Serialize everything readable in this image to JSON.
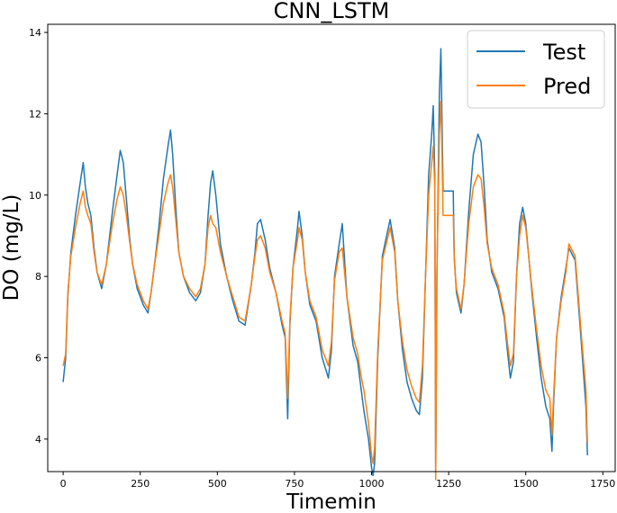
{
  "chart_data": {
    "type": "line",
    "title": "CNN_LSTM",
    "xlabel": "Timemin",
    "ylabel": "DO (mg/L)",
    "xlim": [
      -50,
      1790
    ],
    "ylim": [
      3.2,
      14.2
    ],
    "xticks": [
      0,
      250,
      500,
      750,
      1000,
      1250,
      1500,
      1750
    ],
    "yticks": [
      4,
      6,
      8,
      10,
      12,
      14
    ],
    "grid": false,
    "legend": "top-right",
    "series": [
      {
        "name": "Test",
        "color": "#1f77b4",
        "x": [
          0,
          8,
          15,
          25,
          40,
          55,
          65,
          72,
          80,
          90,
          100,
          110,
          125,
          140,
          160,
          175,
          185,
          195,
          205,
          215,
          225,
          240,
          260,
          275,
          285,
          295,
          310,
          325,
          340,
          348,
          355,
          365,
          375,
          390,
          410,
          430,
          445,
          460,
          470,
          478,
          485,
          495,
          510,
          530,
          550,
          570,
          590,
          610,
          622,
          630,
          640,
          655,
          670,
          690,
          710,
          720,
          728,
          735,
          745,
          760,
          765,
          775,
          785,
          800,
          820,
          840,
          860,
          870,
          880,
          895,
          905,
          920,
          940,
          955,
          965,
          975,
          990,
          1000,
          1005,
          1010,
          1020,
          1035,
          1060,
          1075,
          1085,
          1100,
          1115,
          1130,
          1145,
          1155,
          1165,
          1175,
          1185,
          1195,
          1200,
          1205,
          1208,
          1212,
          1220,
          1225,
          1228,
          1232,
          1240,
          1250,
          1265,
          1268,
          1275,
          1290,
          1300,
          1315,
          1330,
          1345,
          1355,
          1365,
          1375,
          1390,
          1410,
          1430,
          1440,
          1450,
          1460,
          1470,
          1480,
          1490,
          1500,
          1520,
          1535,
          1550,
          1565,
          1578,
          1585,
          1590,
          1600,
          1615,
          1630,
          1640,
          1660,
          1680,
          1695,
          1700
        ],
        "y": [
          5.4,
          6.0,
          7.5,
          8.6,
          9.5,
          10.3,
          10.8,
          10.2,
          9.8,
          9.5,
          8.7,
          8.1,
          7.7,
          8.3,
          9.6,
          10.5,
          11.1,
          10.8,
          9.9,
          9.0,
          8.3,
          7.7,
          7.3,
          7.1,
          7.6,
          8.2,
          9.2,
          10.4,
          11.2,
          11.6,
          11.0,
          9.7,
          8.6,
          8.0,
          7.6,
          7.4,
          7.6,
          8.3,
          9.5,
          10.3,
          10.6,
          10.0,
          8.8,
          8.0,
          7.4,
          6.9,
          6.8,
          7.8,
          8.6,
          9.3,
          9.4,
          8.9,
          8.2,
          7.6,
          6.8,
          6.5,
          4.5,
          6.8,
          8.2,
          9.2,
          9.6,
          9.0,
          8.1,
          7.3,
          6.9,
          6.0,
          5.5,
          6.2,
          8.0,
          8.8,
          9.3,
          7.5,
          6.3,
          5.9,
          5.3,
          4.7,
          4.0,
          3.3,
          3.1,
          3.4,
          6.0,
          8.5,
          9.4,
          8.7,
          7.4,
          6.2,
          5.4,
          5.0,
          4.7,
          4.6,
          5.5,
          8.0,
          10.5,
          11.5,
          12.2,
          10.5,
          3.1,
          8.0,
          12.5,
          13.6,
          12.0,
          10.1,
          10.1,
          10.1,
          10.1,
          8.5,
          7.6,
          7.1,
          7.8,
          9.6,
          11.0,
          11.5,
          11.3,
          10.2,
          8.9,
          8.1,
          7.7,
          7.0,
          6.2,
          5.5,
          5.9,
          8.0,
          9.3,
          9.7,
          9.3,
          7.6,
          6.5,
          5.5,
          4.8,
          4.5,
          3.7,
          4.8,
          6.5,
          7.5,
          8.2,
          8.7,
          8.4,
          6.4,
          4.8,
          3.6
        ]
      },
      {
        "name": "Pred",
        "color": "#ff7f0e",
        "x": [
          0,
          8,
          15,
          25,
          40,
          55,
          65,
          72,
          80,
          90,
          100,
          110,
          125,
          140,
          160,
          175,
          185,
          195,
          205,
          215,
          225,
          240,
          260,
          275,
          285,
          295,
          310,
          325,
          340,
          348,
          355,
          365,
          375,
          390,
          410,
          430,
          445,
          460,
          470,
          478,
          485,
          495,
          510,
          530,
          550,
          570,
          590,
          610,
          622,
          630,
          640,
          655,
          670,
          690,
          710,
          720,
          728,
          735,
          745,
          760,
          765,
          775,
          785,
          800,
          820,
          840,
          860,
          870,
          880,
          895,
          905,
          920,
          940,
          955,
          965,
          975,
          990,
          1000,
          1005,
          1010,
          1020,
          1035,
          1060,
          1075,
          1085,
          1100,
          1115,
          1130,
          1145,
          1155,
          1165,
          1175,
          1185,
          1195,
          1200,
          1205,
          1208,
          1212,
          1220,
          1225,
          1228,
          1232,
          1240,
          1250,
          1265,
          1268,
          1275,
          1290,
          1300,
          1315,
          1330,
          1345,
          1355,
          1365,
          1375,
          1390,
          1410,
          1430,
          1440,
          1450,
          1460,
          1470,
          1480,
          1490,
          1500,
          1520,
          1535,
          1550,
          1565,
          1578,
          1585,
          1590,
          1600,
          1615,
          1630,
          1640,
          1660,
          1680,
          1695,
          1700
        ],
        "y": [
          5.8,
          6.1,
          7.6,
          8.5,
          9.2,
          9.8,
          10.1,
          9.7,
          9.5,
          9.3,
          8.6,
          8.1,
          7.8,
          8.3,
          9.3,
          9.9,
          10.2,
          10.0,
          9.5,
          8.9,
          8.3,
          7.8,
          7.4,
          7.2,
          7.6,
          8.2,
          9.0,
          9.8,
          10.3,
          10.5,
          10.2,
          9.4,
          8.6,
          8.0,
          7.7,
          7.5,
          7.7,
          8.3,
          9.2,
          9.5,
          9.3,
          9.2,
          8.6,
          8.0,
          7.5,
          7.0,
          6.9,
          7.8,
          8.5,
          8.9,
          9.0,
          8.7,
          8.1,
          7.6,
          6.9,
          6.6,
          5.0,
          6.9,
          8.2,
          8.9,
          9.2,
          8.9,
          8.1,
          7.4,
          7.0,
          6.2,
          5.8,
          6.4,
          7.9,
          8.6,
          8.7,
          7.5,
          6.5,
          6.1,
          5.6,
          5.2,
          4.4,
          3.6,
          3.4,
          3.8,
          6.2,
          8.4,
          9.2,
          8.6,
          7.4,
          6.4,
          5.7,
          5.3,
          5.0,
          4.9,
          5.8,
          8.0,
          10.0,
          10.8,
          11.2,
          10.2,
          3.0,
          8.2,
          11.5,
          12.3,
          11.2,
          9.5,
          9.5,
          9.5,
          9.5,
          8.4,
          7.7,
          7.2,
          7.8,
          9.3,
          10.2,
          10.5,
          10.4,
          9.7,
          8.8,
          8.2,
          7.8,
          7.1,
          6.4,
          5.8,
          6.1,
          8.0,
          9.0,
          9.5,
          9.2,
          7.7,
          6.7,
          5.8,
          5.2,
          5.0,
          4.1,
          5.0,
          6.5,
          7.4,
          8.1,
          8.8,
          8.5,
          6.6,
          5.2,
          3.9
        ]
      }
    ]
  }
}
